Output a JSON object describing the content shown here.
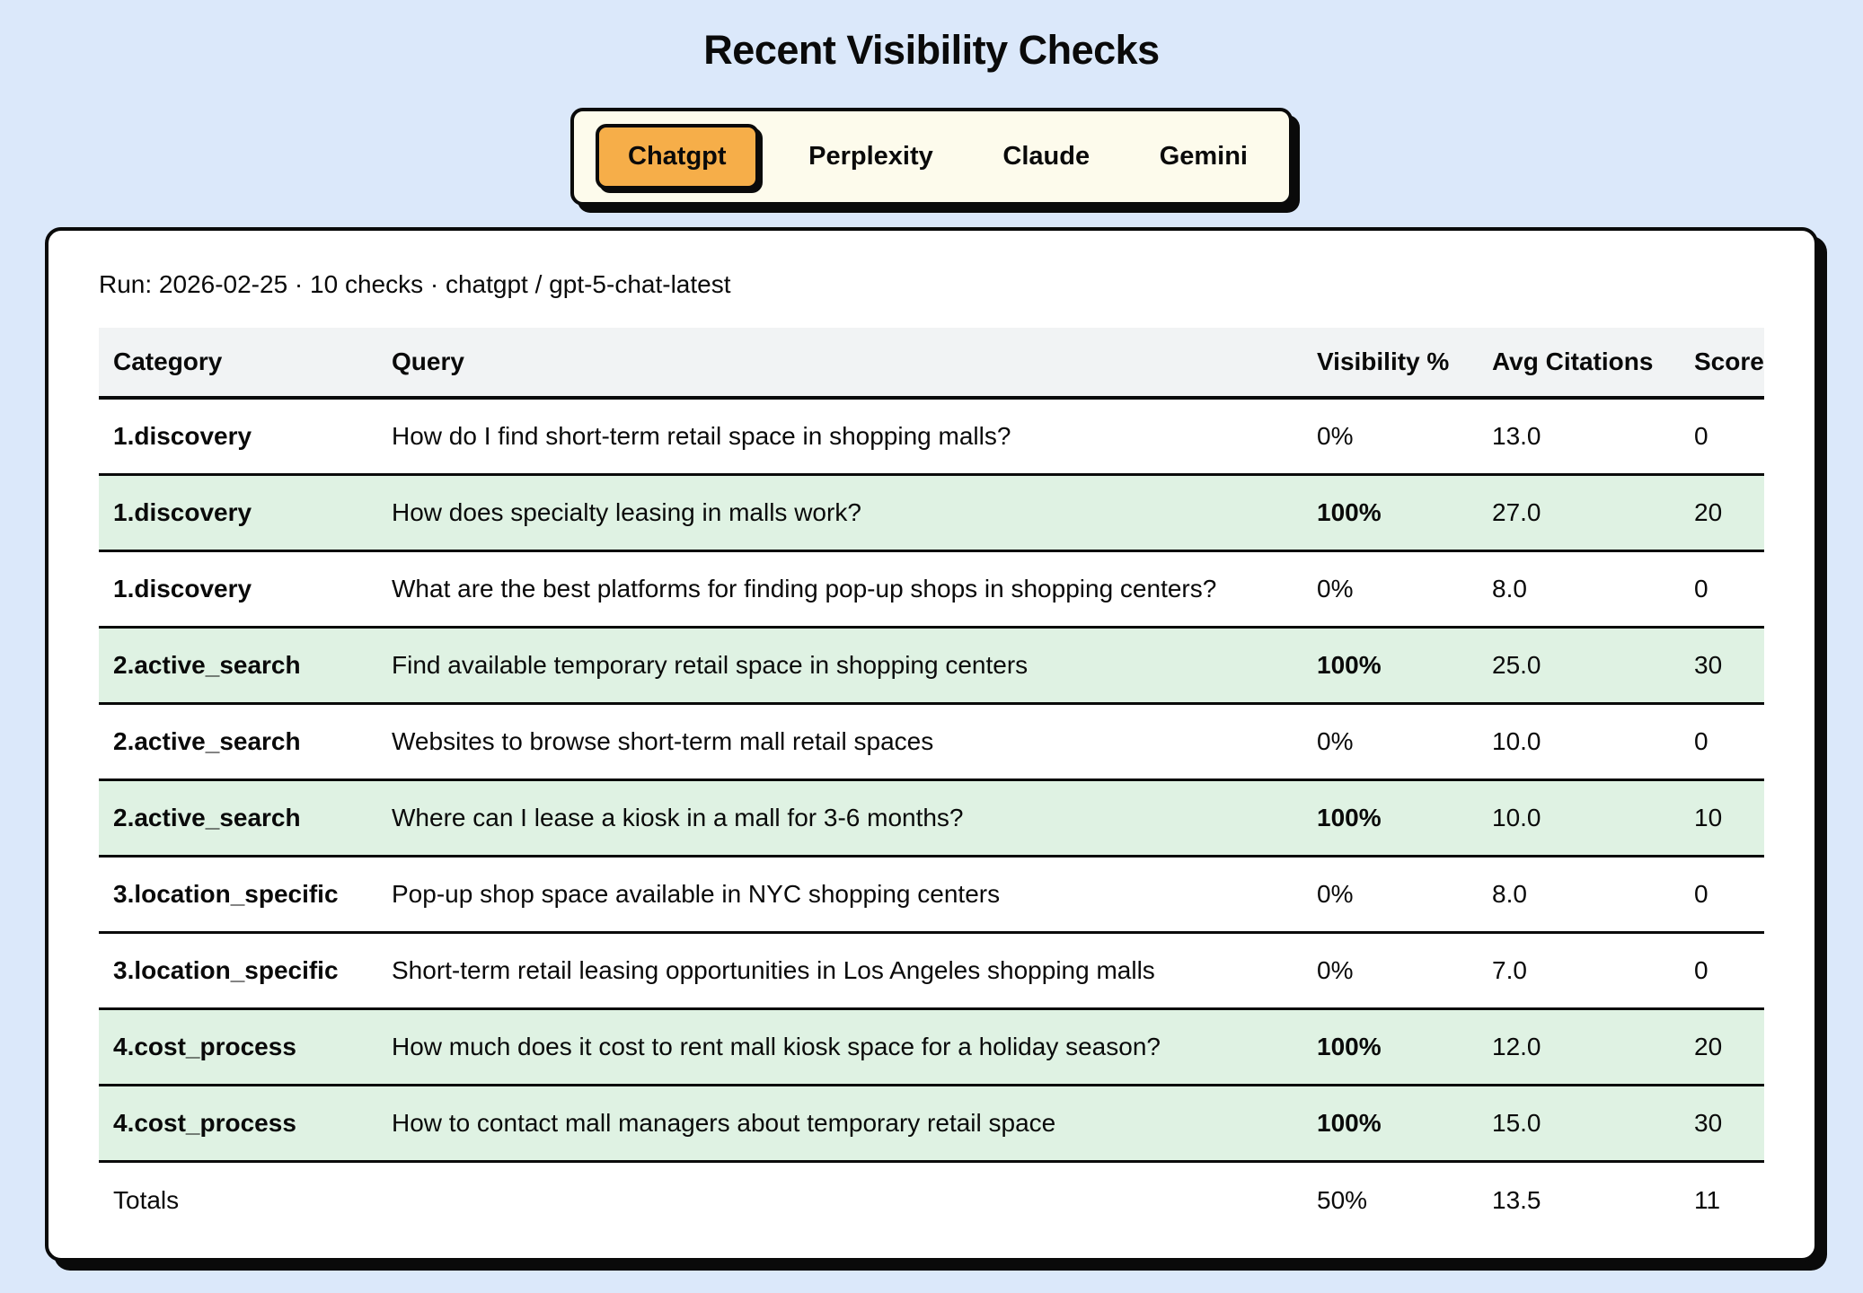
{
  "title": "Recent Visibility Checks",
  "tabs": [
    {
      "label": "Chatgpt",
      "active": true
    },
    {
      "label": "Perplexity",
      "active": false
    },
    {
      "label": "Claude",
      "active": false
    },
    {
      "label": "Gemini",
      "active": false
    }
  ],
  "run_info": "Run: 2026-02-25 · 10 checks · chatgpt / gpt-5-chat-latest",
  "table": {
    "columns": [
      "Category",
      "Query",
      "Visibility %",
      "Avg Citations",
      "Score"
    ],
    "rows": [
      {
        "category": "1.discovery",
        "query": "How do I find short-term retail space in shopping malls?",
        "visibility": "0%",
        "avg_citations": "13.0",
        "score": "0",
        "highlight": false
      },
      {
        "category": "1.discovery",
        "query": "How does specialty leasing in malls work?",
        "visibility": "100%",
        "avg_citations": "27.0",
        "score": "20",
        "highlight": true
      },
      {
        "category": "1.discovery",
        "query": "What are the best platforms for finding pop-up shops in shopping centers?",
        "visibility": "0%",
        "avg_citations": "8.0",
        "score": "0",
        "highlight": false
      },
      {
        "category": "2.active_search",
        "query": "Find available temporary retail space in shopping centers",
        "visibility": "100%",
        "avg_citations": "25.0",
        "score": "30",
        "highlight": true
      },
      {
        "category": "2.active_search",
        "query": "Websites to browse short-term mall retail spaces",
        "visibility": "0%",
        "avg_citations": "10.0",
        "score": "0",
        "highlight": false
      },
      {
        "category": "2.active_search",
        "query": "Where can I lease a kiosk in a mall for 3-6 months?",
        "visibility": "100%",
        "avg_citations": "10.0",
        "score": "10",
        "highlight": true
      },
      {
        "category": "3.location_specific",
        "query": "Pop-up shop space available in NYC shopping centers",
        "visibility": "0%",
        "avg_citations": "8.0",
        "score": "0",
        "highlight": false
      },
      {
        "category": "3.location_specific",
        "query": "Short-term retail leasing opportunities in Los Angeles shopping malls",
        "visibility": "0%",
        "avg_citations": "7.0",
        "score": "0",
        "highlight": false
      },
      {
        "category": "4.cost_process",
        "query": "How much does it cost to rent mall kiosk space for a holiday season?",
        "visibility": "100%",
        "avg_citations": "12.0",
        "score": "20",
        "highlight": true
      },
      {
        "category": "4.cost_process",
        "query": "How to contact mall managers about temporary retail space",
        "visibility": "100%",
        "avg_citations": "15.0",
        "score": "30",
        "highlight": true
      }
    ],
    "totals": {
      "label": "Totals",
      "visibility": "50%",
      "avg_citations": "13.5",
      "score": "11"
    }
  },
  "colors": {
    "page_background": "#DBE8FA",
    "card_background": "#FFFFFF",
    "tabbar_background": "#FDFBEC",
    "active_tab_orange": "#F6AE49",
    "highlight_row_green": "#DFF2E3",
    "header_row_gray": "#F1F3F4",
    "border_black": "#0A0A0A"
  }
}
